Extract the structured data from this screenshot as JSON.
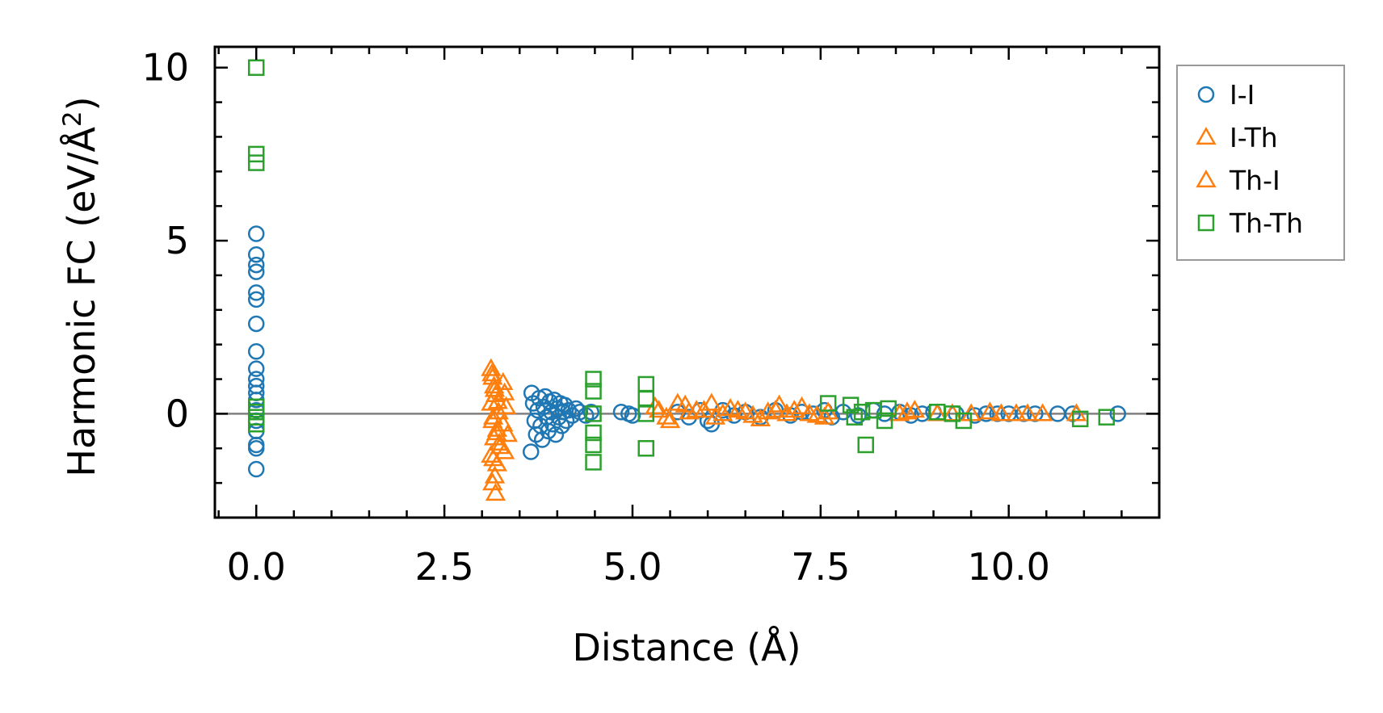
{
  "chart_data": {
    "type": "scatter",
    "title": "",
    "xlabel": "Distance (Å)",
    "ylabel_main": "Harmonic FC (eV/Å",
    "ylabel_sup": "2",
    "ylabel_close": ")",
    "xlim": [
      -0.55,
      12.0
    ],
    "ylim": [
      -3.0,
      10.6
    ],
    "xticks": [
      0.0,
      2.5,
      5.0,
      7.5,
      10.0
    ],
    "xtick_labels": [
      "0.0",
      "2.5",
      "5.0",
      "7.5",
      "10.0"
    ],
    "xminor_step": 0.5,
    "yticks": [
      0,
      5,
      10
    ],
    "ytick_labels": [
      "0",
      "5",
      "10"
    ],
    "yminor_step": 1,
    "zero_line": true,
    "legend_position": "outside-right-top",
    "series": [
      {
        "name": "I-I",
        "marker": "circle",
        "color": "#1f77b4",
        "points": [
          [
            0,
            5.2
          ],
          [
            0,
            4.6
          ],
          [
            0,
            4.3
          ],
          [
            0,
            4.1
          ],
          [
            0,
            3.5
          ],
          [
            0,
            3.3
          ],
          [
            0,
            2.6
          ],
          [
            0,
            1.8
          ],
          [
            0,
            1.3
          ],
          [
            0,
            1.0
          ],
          [
            0,
            0.8
          ],
          [
            0,
            0.6
          ],
          [
            0,
            0.4
          ],
          [
            0,
            0.1
          ],
          [
            0,
            -0.2
          ],
          [
            0,
            -0.5
          ],
          [
            0,
            -0.9
          ],
          [
            0,
            -1.0
          ],
          [
            0,
            -1.6
          ],
          [
            3.65,
            -1.1
          ],
          [
            3.66,
            0.6
          ],
          [
            3.68,
            0.3
          ],
          [
            3.7,
            -0.2
          ],
          [
            3.72,
            -0.6
          ],
          [
            3.74,
            0.1
          ],
          [
            3.76,
            0.45
          ],
          [
            3.78,
            -0.35
          ],
          [
            3.8,
            -0.75
          ],
          [
            3.82,
            0.2
          ],
          [
            3.84,
            0.5
          ],
          [
            3.86,
            -0.1
          ],
          [
            3.88,
            -0.5
          ],
          [
            3.9,
            0.35
          ],
          [
            3.92,
            0.05
          ],
          [
            3.94,
            -0.3
          ],
          [
            3.96,
            0.4
          ],
          [
            3.98,
            -0.6
          ],
          [
            4.0,
            0.15
          ],
          [
            4.02,
            -0.1
          ],
          [
            4.04,
            0.3
          ],
          [
            4.06,
            -0.35
          ],
          [
            4.08,
            0.05
          ],
          [
            4.1,
            0.25
          ],
          [
            4.12,
            -0.2
          ],
          [
            4.15,
            0.1
          ],
          [
            4.2,
            -0.05
          ],
          [
            4.25,
            0.15
          ],
          [
            4.3,
            0.05
          ],
          [
            4.38,
            -0.05
          ],
          [
            4.45,
            0.05
          ],
          [
            4.85,
            0.05
          ],
          [
            4.95,
            0.0
          ],
          [
            5.0,
            -0.05
          ],
          [
            5.6,
            0.05
          ],
          [
            5.75,
            -0.1
          ],
          [
            5.9,
            0.1
          ],
          [
            6.0,
            -0.2
          ],
          [
            6.05,
            -0.3
          ],
          [
            6.2,
            0.1
          ],
          [
            6.35,
            -0.05
          ],
          [
            6.5,
            0.05
          ],
          [
            6.7,
            -0.1
          ],
          [
            6.9,
            0.1
          ],
          [
            7.1,
            -0.05
          ],
          [
            7.25,
            0.05
          ],
          [
            7.4,
            0.0
          ],
          [
            7.55,
            0.1
          ],
          [
            7.65,
            -0.1
          ],
          [
            7.8,
            0.05
          ],
          [
            8.0,
            -0.05
          ],
          [
            8.2,
            0.1
          ],
          [
            8.35,
            0.0
          ],
          [
            8.55,
            0.05
          ],
          [
            8.7,
            -0.05
          ],
          [
            8.85,
            0.0
          ],
          [
            9.0,
            0.05
          ],
          [
            9.3,
            0.0
          ],
          [
            9.55,
            -0.05
          ],
          [
            9.7,
            0.0
          ],
          [
            9.85,
            0.0
          ],
          [
            10.0,
            0.0
          ],
          [
            10.2,
            0.0
          ],
          [
            10.35,
            0.0
          ],
          [
            10.65,
            0.0
          ],
          [
            10.85,
            0.0
          ],
          [
            11.45,
            0.0
          ]
        ]
      },
      {
        "name": "I-Th",
        "marker": "triangle",
        "color": "#ff7f0e",
        "points": [
          [
            3.12,
            1.3
          ],
          [
            3.14,
            1.05
          ],
          [
            3.16,
            0.8
          ],
          [
            3.18,
            0.55
          ],
          [
            3.12,
            0.3
          ],
          [
            3.22,
            0.05
          ],
          [
            3.14,
            -0.2
          ],
          [
            3.2,
            -0.45
          ],
          [
            3.16,
            -0.7
          ],
          [
            3.24,
            -0.95
          ],
          [
            3.12,
            -1.2
          ],
          [
            3.2,
            -1.45
          ],
          [
            3.14,
            -2.0
          ],
          [
            3.18,
            -2.3
          ],
          [
            3.28,
            0.9
          ],
          [
            3.3,
            0.6
          ],
          [
            3.32,
            0.2
          ],
          [
            3.28,
            -0.3
          ],
          [
            3.34,
            -0.6
          ],
          [
            3.3,
            -1.1
          ],
          [
            5.3,
            0.2
          ],
          [
            5.45,
            -0.1
          ],
          [
            5.6,
            0.3
          ],
          [
            5.75,
            0.05
          ],
          [
            5.95,
            0.1
          ],
          [
            6.1,
            -0.1
          ],
          [
            6.3,
            0.15
          ],
          [
            6.5,
            0.05
          ],
          [
            6.7,
            -0.15
          ],
          [
            6.9,
            0.1
          ],
          [
            7.05,
            0.0
          ],
          [
            7.25,
            0.2
          ],
          [
            7.45,
            -0.05
          ],
          [
            7.6,
            0.05
          ],
          [
            8.55,
            0.0
          ],
          [
            8.75,
            0.1
          ],
          [
            9.25,
            0.0
          ],
          [
            9.75,
            0.05
          ],
          [
            10.1,
            0.0
          ],
          [
            10.45,
            0.0
          ]
        ]
      },
      {
        "name": "Th-I",
        "marker": "triangle",
        "color": "#ff7f0e",
        "points": [
          [
            3.13,
            1.15
          ],
          [
            3.17,
            0.7
          ],
          [
            3.21,
            0.35
          ],
          [
            3.15,
            -0.1
          ],
          [
            3.19,
            -0.55
          ],
          [
            3.23,
            -0.85
          ],
          [
            3.15,
            -1.3
          ],
          [
            3.17,
            -1.8
          ],
          [
            5.35,
            0.1
          ],
          [
            5.5,
            -0.2
          ],
          [
            5.7,
            0.25
          ],
          [
            5.85,
            0.1
          ],
          [
            6.05,
            0.3
          ],
          [
            6.2,
            0.0
          ],
          [
            6.4,
            0.1
          ],
          [
            6.6,
            -0.05
          ],
          [
            6.8,
            0.05
          ],
          [
            6.95,
            0.25
          ],
          [
            7.15,
            0.1
          ],
          [
            7.35,
            0.0
          ],
          [
            7.55,
            -0.1
          ],
          [
            8.65,
            0.05
          ],
          [
            9.05,
            0.0
          ],
          [
            9.5,
            0.0
          ],
          [
            9.9,
            0.0
          ],
          [
            10.25,
            0.0
          ],
          [
            10.9,
            0.0
          ]
        ]
      },
      {
        "name": "Th-Th",
        "marker": "square",
        "color": "#2ca02c",
        "points": [
          [
            0,
            10.0
          ],
          [
            0,
            7.5
          ],
          [
            0,
            7.25
          ],
          [
            0,
            0.2
          ],
          [
            0,
            0.05
          ],
          [
            0,
            -0.1
          ],
          [
            0,
            -0.3
          ],
          [
            4.48,
            1.0
          ],
          [
            4.48,
            0.65
          ],
          [
            4.48,
            0.0
          ],
          [
            4.48,
            -0.55
          ],
          [
            4.48,
            -1.4
          ],
          [
            4.48,
            -0.9
          ],
          [
            5.18,
            0.85
          ],
          [
            5.18,
            0.45
          ],
          [
            5.18,
            -1.0
          ],
          [
            5.18,
            0.0
          ],
          [
            7.6,
            0.3
          ],
          [
            7.9,
            0.25
          ],
          [
            7.95,
            -0.1
          ],
          [
            8.05,
            0.05
          ],
          [
            8.1,
            -0.9
          ],
          [
            8.2,
            0.1
          ],
          [
            8.35,
            -0.2
          ],
          [
            8.4,
            0.15
          ],
          [
            9.05,
            0.05
          ],
          [
            9.25,
            0.0
          ],
          [
            9.4,
            -0.2
          ],
          [
            10.95,
            -0.15
          ],
          [
            11.3,
            -0.1
          ]
        ]
      }
    ]
  }
}
